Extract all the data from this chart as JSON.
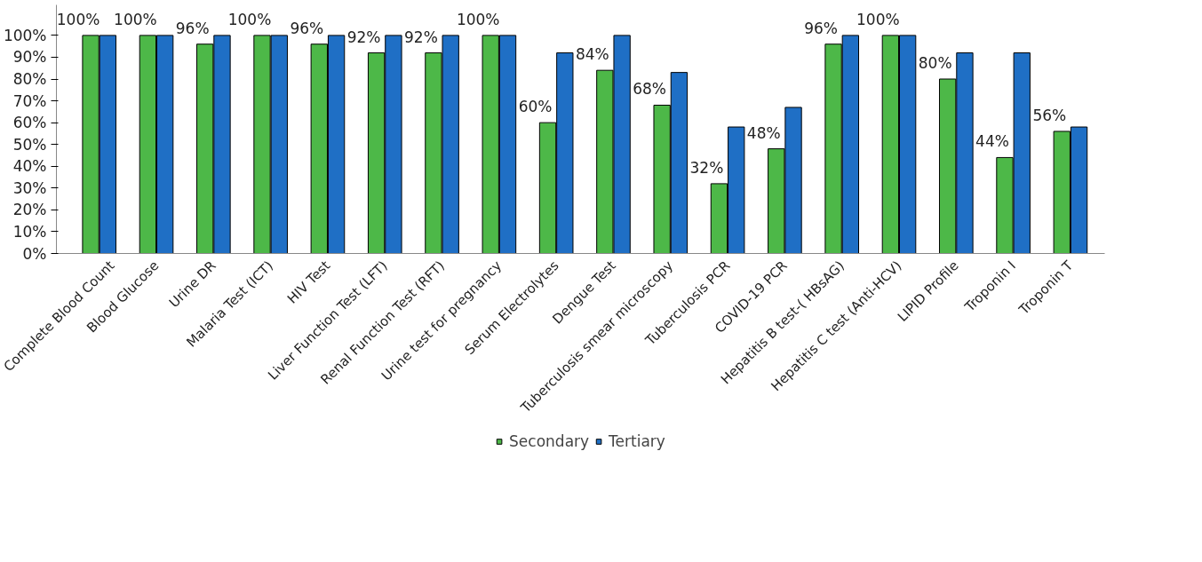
{
  "chart_data": {
    "type": "bar",
    "categories": [
      "Complete Blood Count",
      "Blood Glucose",
      "Urine DR",
      "Malaria Test (ICT)",
      "HIV Test",
      "Liver Function Test (LFT)",
      "Renal Function Test (RFT)",
      "Urine test for pregnancy",
      "Serum Electrolytes",
      "Dengue Test",
      "Tuberculosis smear microscopy",
      "Tuberculosis PCR",
      "COVID-19 PCR",
      "Hepatitis B test-( HBsAG)",
      "Hepatitis C test (Anti-HCV)",
      "LIPID Profile",
      "Troponin I",
      "Troponin T"
    ],
    "series": [
      {
        "name": "Secondary",
        "color": "#4db848",
        "values": [
          100,
          100,
          96,
          100,
          96,
          92,
          92,
          100,
          60,
          84,
          68,
          32,
          48,
          96,
          100,
          80,
          44,
          56
        ],
        "value_labels": [
          "100%",
          "100%",
          "96%",
          "100%",
          "96%",
          "92%",
          "92%",
          "100%",
          "60%",
          "84%",
          "68%",
          "32%",
          "48%",
          "96%",
          "100%",
          "80%",
          "44%",
          "56%"
        ]
      },
      {
        "name": "Tertiary",
        "color": "#1f6fc5",
        "values": [
          100,
          100,
          100,
          100,
          100,
          100,
          100,
          100,
          92,
          100,
          83,
          58,
          67,
          100,
          100,
          92,
          92,
          58
        ]
      }
    ],
    "ylim": [
      0,
      100
    ],
    "yticks": [
      {
        "value": 0,
        "label": "0%"
      },
      {
        "value": 10,
        "label": "10%"
      },
      {
        "value": 20,
        "label": "20%"
      },
      {
        "value": 30,
        "label": "30%"
      },
      {
        "value": 40,
        "label": "40%"
      },
      {
        "value": 50,
        "label": "50%"
      },
      {
        "value": 60,
        "label": "60%"
      },
      {
        "value": 70,
        "label": "70%"
      },
      {
        "value": 80,
        "label": "80%"
      },
      {
        "value": 90,
        "label": "90%"
      },
      {
        "value": 100,
        "label": "100%"
      }
    ],
    "grid": false,
    "legend": "bottom"
  }
}
